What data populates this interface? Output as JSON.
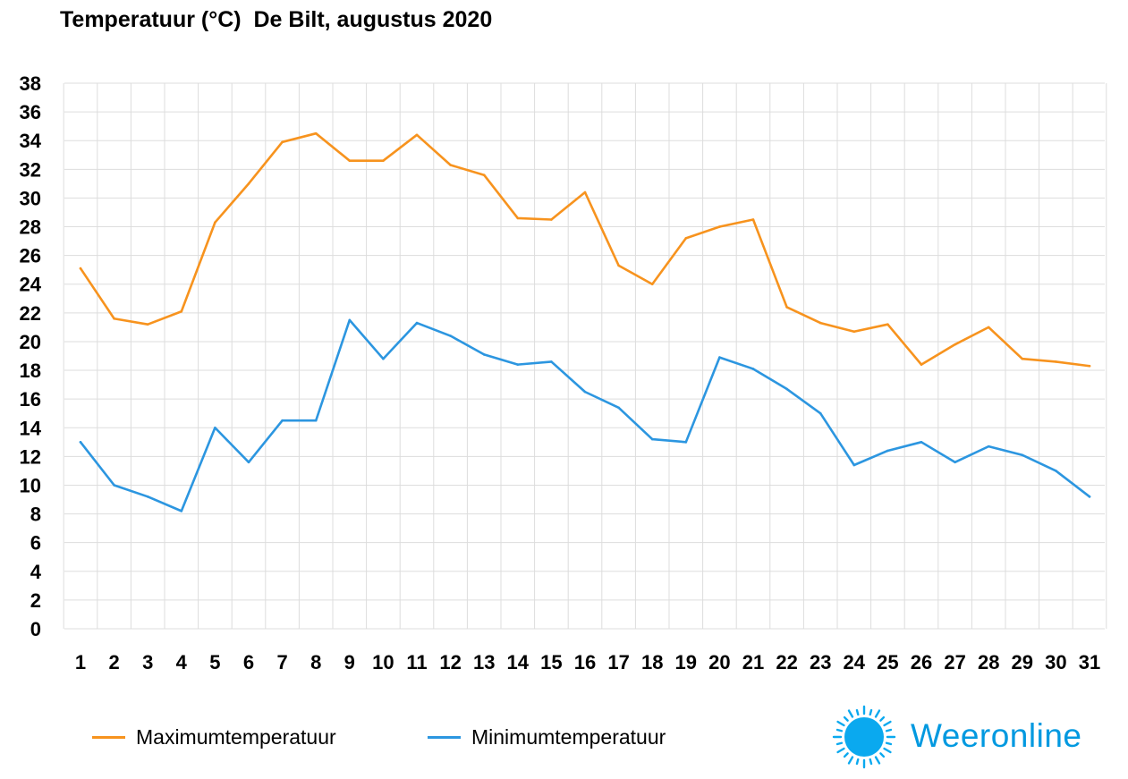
{
  "chart_data": {
    "type": "line",
    "title": "Temperatuur (°C)  De Bilt, augustus 2020",
    "xlabel": "",
    "ylabel": "",
    "categories": [
      "1",
      "2",
      "3",
      "4",
      "5",
      "6",
      "7",
      "8",
      "9",
      "10",
      "11",
      "12",
      "13",
      "14",
      "15",
      "16",
      "17",
      "18",
      "19",
      "20",
      "21",
      "22",
      "23",
      "24",
      "25",
      "26",
      "27",
      "28",
      "29",
      "30",
      "31"
    ],
    "ylim": [
      0,
      38
    ],
    "yticks": [
      "0",
      "2",
      "4",
      "6",
      "8",
      "10",
      "12",
      "14",
      "16",
      "18",
      "20",
      "22",
      "24",
      "26",
      "28",
      "30",
      "32",
      "34",
      "36",
      "38"
    ],
    "grid": true,
    "legend_position": "bottom-left",
    "series": [
      {
        "name": "Maximumtemperatuur",
        "color": "#f7931e",
        "values": [
          25.1,
          21.6,
          21.2,
          22.1,
          28.3,
          31.0,
          33.9,
          34.5,
          32.6,
          32.6,
          34.4,
          32.3,
          31.6,
          28.6,
          28.5,
          30.4,
          25.3,
          24.0,
          27.2,
          28.0,
          28.5,
          22.4,
          21.3,
          20.7,
          21.2,
          18.4,
          19.8,
          21.0,
          18.8,
          18.6,
          18.3
        ]
      },
      {
        "name": "Minimumtemperatuur",
        "color": "#2c96e0",
        "values": [
          13.0,
          10.0,
          9.2,
          8.2,
          14.0,
          11.6,
          14.5,
          14.5,
          21.5,
          18.8,
          21.3,
          20.4,
          19.1,
          18.4,
          18.6,
          16.5,
          15.4,
          13.2,
          13.0,
          18.9,
          18.1,
          16.7,
          15.0,
          11.4,
          12.4,
          13.0,
          11.6,
          12.7,
          12.1,
          11.0,
          9.2
        ]
      }
    ]
  },
  "legend": {
    "max_label": "Maximumtemperatuur",
    "min_label": "Minimumtemperatuur"
  },
  "logo": {
    "text": "Weeronline",
    "color": "#0099e0"
  }
}
